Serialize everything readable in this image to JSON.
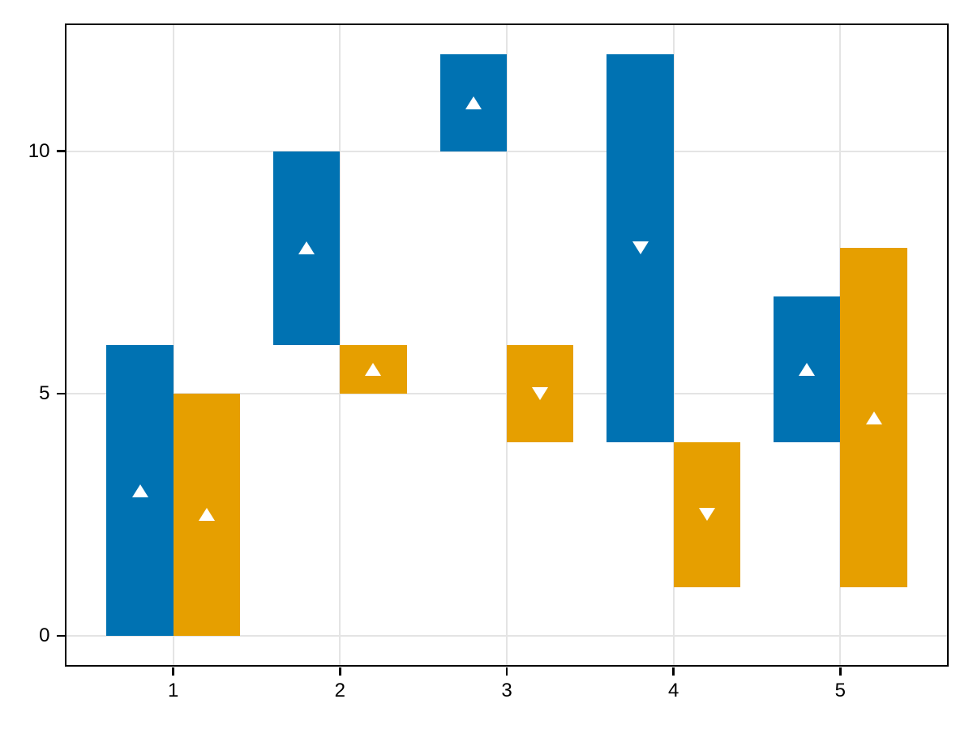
{
  "chart_data": {
    "type": "bar",
    "subtype": "floating-range-bars-with-markers",
    "title": "",
    "xlabel": "",
    "ylabel": "",
    "xlim": [
      0.36,
      5.64
    ],
    "ylim": [
      -0.6,
      12.6
    ],
    "x_ticks": [
      1,
      2,
      3,
      4,
      5
    ],
    "x_tick_labels": [
      "1",
      "2",
      "3",
      "4",
      "5"
    ],
    "y_ticks": [
      0,
      5,
      10
    ],
    "y_tick_labels": [
      "0",
      "5",
      "10"
    ],
    "grid": true,
    "legend": "none",
    "bar_width": 0.4,
    "marker_color": "#ffffff",
    "series": [
      {
        "name": "blue-series",
        "color": "#0072B2",
        "bars": [
          {
            "x": 0.8,
            "low": 0,
            "high": 6,
            "marker_y": 3,
            "marker_shape": "triangle-up"
          },
          {
            "x": 1.8,
            "low": 6,
            "high": 10,
            "marker_y": 8,
            "marker_shape": "triangle-up"
          },
          {
            "x": 2.8,
            "low": 10,
            "high": 12,
            "marker_y": 11,
            "marker_shape": "triangle-up"
          },
          {
            "x": 3.8,
            "low": 4,
            "high": 12,
            "marker_y": 8,
            "marker_shape": "triangle-down"
          },
          {
            "x": 4.8,
            "low": 4,
            "high": 7,
            "marker_y": 5.5,
            "marker_shape": "triangle-up"
          }
        ]
      },
      {
        "name": "orange-series",
        "color": "#E69F00",
        "bars": [
          {
            "x": 1.2,
            "low": 0,
            "high": 5,
            "marker_y": 2.5,
            "marker_shape": "triangle-up"
          },
          {
            "x": 2.2,
            "low": 5,
            "high": 6,
            "marker_y": 5.5,
            "marker_shape": "triangle-up"
          },
          {
            "x": 3.2,
            "low": 4,
            "high": 6,
            "marker_y": 5,
            "marker_shape": "triangle-down"
          },
          {
            "x": 4.2,
            "low": 1,
            "high": 4,
            "marker_y": 2.5,
            "marker_shape": "triangle-down"
          },
          {
            "x": 5.2,
            "low": 1,
            "high": 8,
            "marker_y": 4.5,
            "marker_shape": "triangle-up"
          }
        ]
      }
    ]
  },
  "axes_style": {
    "grid_color": "#e4e4e4",
    "spine_color": "#000000",
    "tick_color": "#000000",
    "label_color": "#000000",
    "background_color": "#ffffff"
  }
}
